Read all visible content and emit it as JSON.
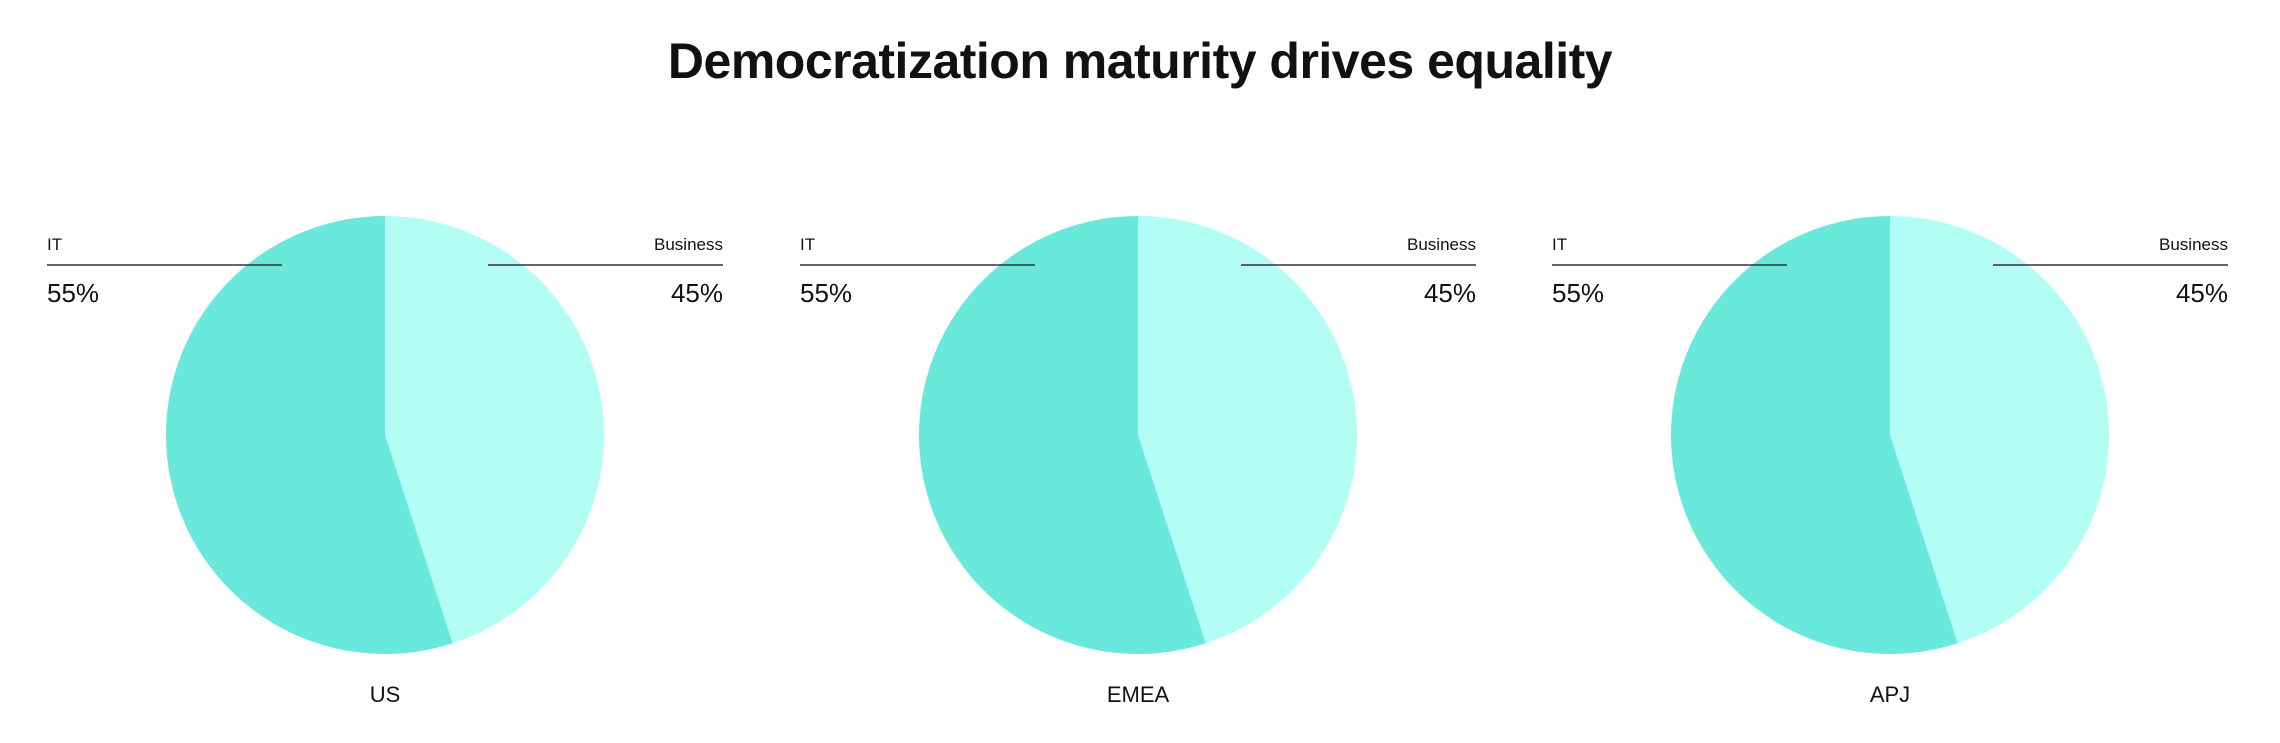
{
  "title": "Democratization maturity drives equality",
  "chart_data": [
    {
      "type": "pie",
      "title": "US",
      "slices": [
        {
          "label": "IT",
          "value": 55,
          "display": "55%",
          "color": "#69e8dc"
        },
        {
          "label": "Business",
          "value": 45,
          "display": "45%",
          "color": "#b3fef4"
        }
      ]
    },
    {
      "type": "pie",
      "title": "EMEA",
      "slices": [
        {
          "label": "IT",
          "value": 55,
          "display": "55%",
          "color": "#69e8dc"
        },
        {
          "label": "Business",
          "value": 45,
          "display": "45%",
          "color": "#b3fef4"
        }
      ]
    },
    {
      "type": "pie",
      "title": "APJ",
      "slices": [
        {
          "label": "IT",
          "value": 55,
          "display": "55%",
          "color": "#69e8dc"
        },
        {
          "label": "Business",
          "value": 45,
          "display": "45%",
          "color": "#b3fef4"
        }
      ]
    }
  ]
}
